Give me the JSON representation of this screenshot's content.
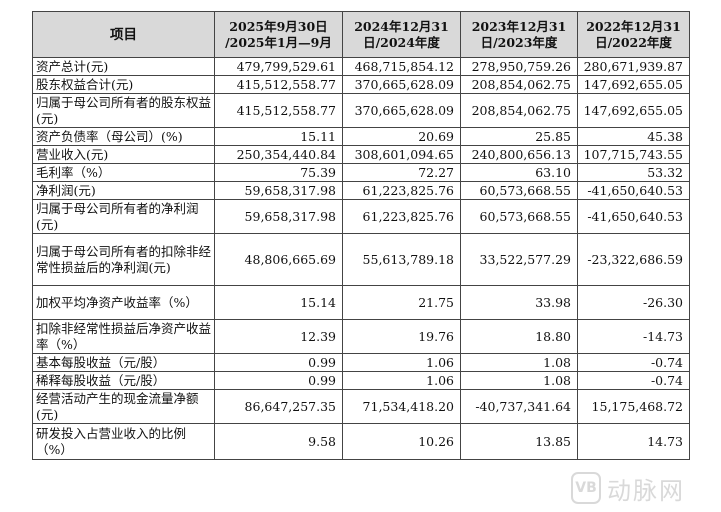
{
  "table": {
    "headers": [
      {
        "line1": "项目",
        "line2": ""
      },
      {
        "line1": "2025年9月30日",
        "line2": "/2025年1月—9月"
      },
      {
        "line1": "2024年12月31",
        "line2": "日/2024年度"
      },
      {
        "line1": "2023年12月31",
        "line2": "日/2023年度"
      },
      {
        "line1": "2022年12月31",
        "line2": "日/2022年度"
      }
    ],
    "rows": [
      {
        "label": "资产总计(元)",
        "values": [
          "479,799,529.61",
          "468,715,854.12",
          "278,950,759.26",
          "280,671,939.87"
        ]
      },
      {
        "label": "股东权益合计(元)",
        "values": [
          "415,512,558.77",
          "370,665,628.09",
          "208,854,062.75",
          "147,692,655.05"
        ]
      },
      {
        "label": "归属于母公司所有者的股东权益(元)",
        "values": [
          "415,512,558.77",
          "370,665,628.09",
          "208,854,062.75",
          "147,692,655.05"
        ]
      },
      {
        "label": "资产负债率（母公司）(%)",
        "values": [
          "15.11",
          "20.69",
          "25.85",
          "45.38"
        ]
      },
      {
        "label": "营业收入(元)",
        "values": [
          "250,354,440.84",
          "308,601,094.65",
          "240,800,656.13",
          "107,715,743.55"
        ]
      },
      {
        "label": "毛利率（%）",
        "values": [
          "75.39",
          "72.27",
          "63.10",
          "53.32"
        ]
      },
      {
        "label": "净利润(元)",
        "values": [
          "59,658,317.98",
          "61,223,825.76",
          "60,573,668.55",
          "-41,650,640.53"
        ]
      },
      {
        "label": "归属于母公司所有者的净利润(元)",
        "values": [
          "59,658,317.98",
          "61,223,825.76",
          "60,573,668.55",
          "-41,650,640.53"
        ]
      },
      {
        "label": "归属于母公司所有者的扣除非经常性损益后的净利润(元)",
        "values": [
          "48,806,665.69",
          "55,613,789.18",
          "33,522,577.29",
          "-23,322,686.59"
        ]
      },
      {
        "label": "加权平均净资产收益率（%）",
        "values": [
          "15.14",
          "21.75",
          "33.98",
          "-26.30"
        ]
      },
      {
        "label": "扣除非经常性损益后净资产收益率（%）",
        "values": [
          "12.39",
          "19.76",
          "18.80",
          "-14.73"
        ]
      },
      {
        "label": "基本每股收益（元/股）",
        "values": [
          "0.99",
          "1.06",
          "1.08",
          "-0.74"
        ]
      },
      {
        "label": "稀释每股收益（元/股）",
        "values": [
          "0.99",
          "1.06",
          "1.08",
          "-0.74"
        ]
      },
      {
        "label": "经营活动产生的现金流量净额(元)",
        "values": [
          "86,647,257.35",
          "71,534,418.20",
          "-40,737,341.64",
          "15,175,468.72"
        ]
      },
      {
        "label": "研发投入占营业收入的比例（%）",
        "values": [
          "9.58",
          "10.26",
          "13.85",
          "14.73"
        ]
      }
    ]
  },
  "watermark": {
    "logo": "VB",
    "text": "动脉网"
  }
}
